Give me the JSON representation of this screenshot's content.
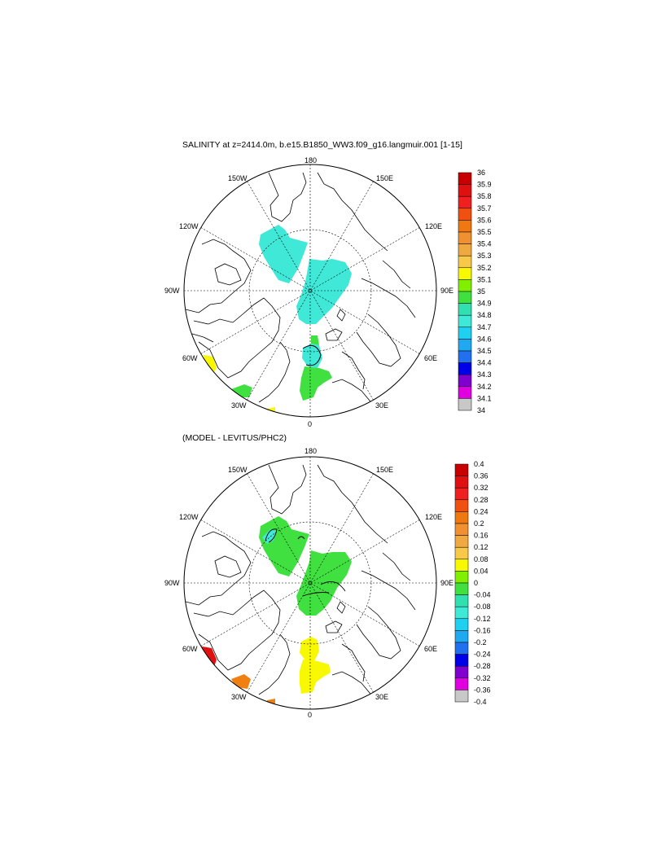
{
  "figure": {
    "title_top": "SALINITY at z=2414.0m, b.e15.B1850_WW3.f09_g16.langmuir.001 [1-15]",
    "title_bottom": "(MODEL - LEVITUS/PHC2)"
  },
  "map_labels": {
    "lon_180": "180",
    "lon_150w": "150W",
    "lon_150e": "150E",
    "lon_120w": "120W",
    "lon_120e": "120E",
    "lon_90w": "90W",
    "lon_90e": "90E",
    "lon_60w": "60W",
    "lon_60e": "60E",
    "lon_30w": "30W",
    "lon_30e": "30E",
    "lon_0": "0"
  },
  "colors": {
    "land_outline": "#000000",
    "grid": "#000000",
    "salinity_blob": "#40e8d8",
    "anomaly_green": "#40e040",
    "anomaly_yellow": "#f8f800",
    "anomaly_red": "#e01010",
    "anomaly_orange": "#f08010"
  },
  "colorbar_top": {
    "labels": [
      "36",
      "35.9",
      "35.8",
      "35.7",
      "35.6",
      "35.5",
      "35.4",
      "35.3",
      "35.2",
      "35.1",
      "35",
      "34.9",
      "34.8",
      "34.7",
      "34.6",
      "34.5",
      "34.4",
      "34.3",
      "34.2",
      "34.1",
      "34"
    ],
    "colors": [
      "#c80000",
      "#e01010",
      "#f02020",
      "#f05010",
      "#f07810",
      "#f09030",
      "#f0a840",
      "#f8c848",
      "#f8f800",
      "#80f000",
      "#40e040",
      "#30e0b0",
      "#40e8d8",
      "#20d0f0",
      "#20a8f0",
      "#2070f0",
      "#0000e8",
      "#8000d0",
      "#e000e0",
      "#c8c8c8",
      "#707070"
    ]
  },
  "colorbar_bottom": {
    "labels": [
      "0.4",
      "0.36",
      "0.32",
      "0.28",
      "0.24",
      "0.2",
      "0.16",
      "0.12",
      "0.08",
      "0.04",
      "0",
      "-0.04",
      "-0.08",
      "-0.12",
      "-0.16",
      "-0.2",
      "-0.24",
      "-0.28",
      "-0.32",
      "-0.36",
      "-0.4"
    ],
    "colors": [
      "#c80000",
      "#e01010",
      "#f02020",
      "#f05010",
      "#f07810",
      "#f09030",
      "#f0a840",
      "#f8c848",
      "#f8f800",
      "#80f000",
      "#40e040",
      "#30e0b0",
      "#40e8d8",
      "#20d0f0",
      "#20a8f0",
      "#2070f0",
      "#0000e8",
      "#8000d0",
      "#e000e0",
      "#c8c8c8",
      "#707070"
    ]
  }
}
